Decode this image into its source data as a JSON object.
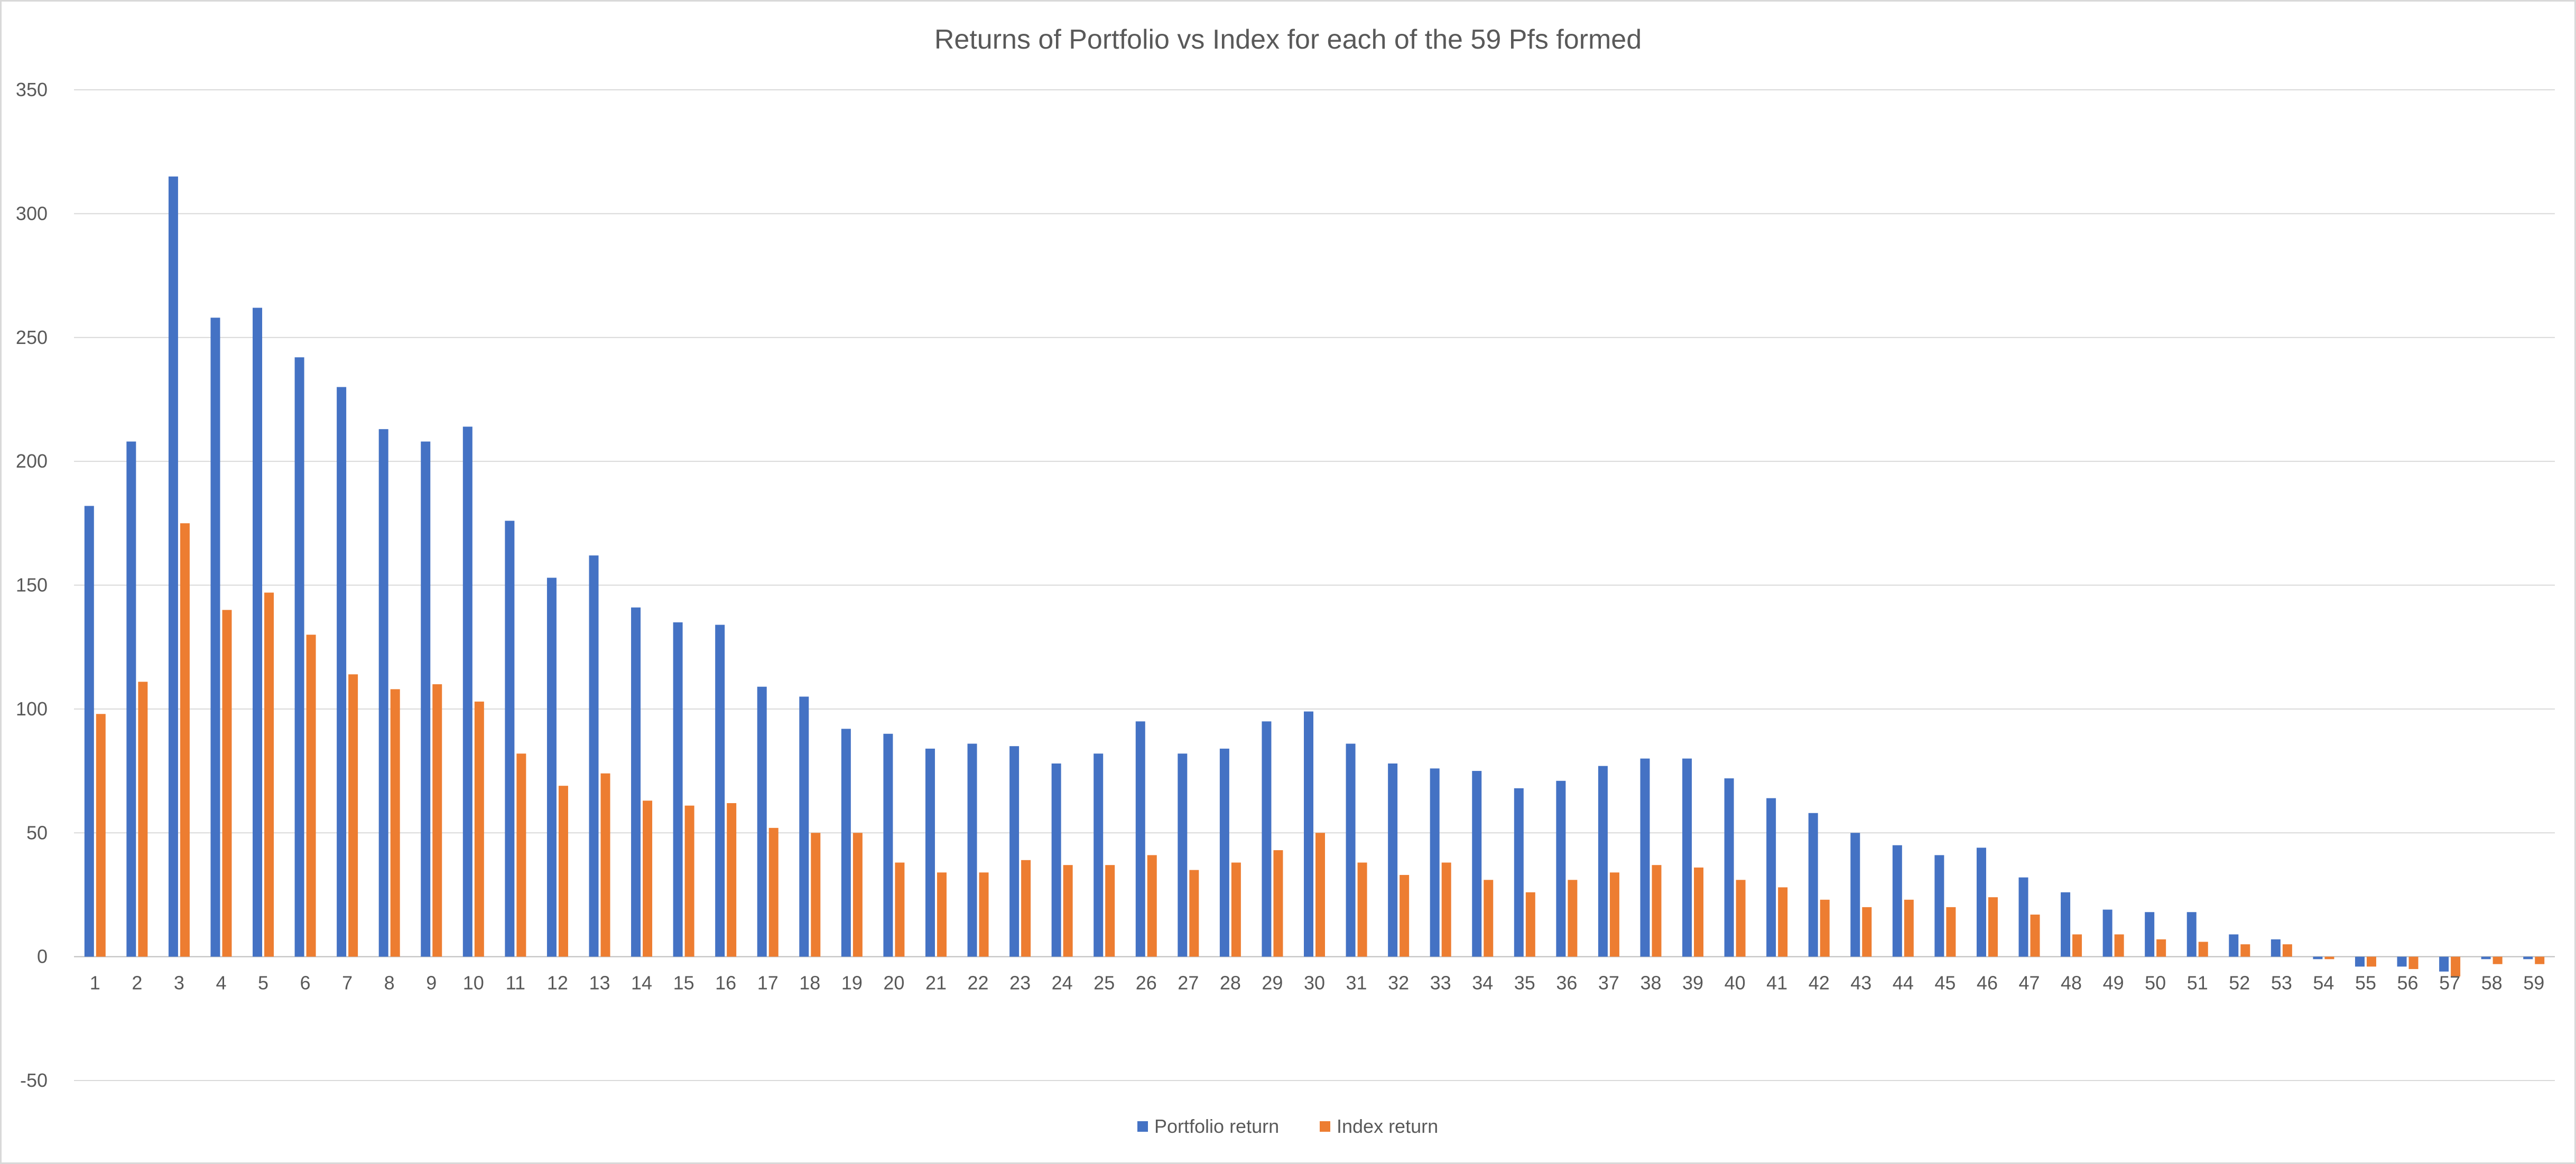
{
  "chart_data": {
    "type": "bar",
    "title": "Returns of Portfolio vs Index  for each of the 59 Pfs formed",
    "xlabel": "",
    "ylabel": "",
    "ylim": [
      -50,
      350
    ],
    "yticks": [
      -50,
      0,
      50,
      100,
      150,
      200,
      250,
      300,
      350
    ],
    "grid": true,
    "legend_position": "bottom",
    "categories": [
      "1",
      "2",
      "3",
      "4",
      "5",
      "6",
      "7",
      "8",
      "9",
      "10",
      "11",
      "12",
      "13",
      "14",
      "15",
      "16",
      "17",
      "18",
      "19",
      "20",
      "21",
      "22",
      "23",
      "24",
      "25",
      "26",
      "27",
      "28",
      "29",
      "30",
      "31",
      "32",
      "33",
      "34",
      "35",
      "36",
      "37",
      "38",
      "39",
      "40",
      "41",
      "42",
      "43",
      "44",
      "45",
      "46",
      "47",
      "48",
      "49",
      "50",
      "51",
      "52",
      "53",
      "54",
      "55",
      "56",
      "57",
      "58",
      "59"
    ],
    "series": [
      {
        "name": "Portfolio return",
        "color": "#4472C4",
        "values": [
          182,
          208,
          315,
          258,
          262,
          242,
          230,
          213,
          208,
          214,
          176,
          153,
          162,
          141,
          135,
          134,
          109,
          105,
          92,
          90,
          84,
          86,
          85,
          78,
          82,
          95,
          82,
          84,
          95,
          99,
          86,
          78,
          76,
          75,
          68,
          71,
          77,
          80,
          80,
          72,
          64,
          58,
          50,
          45,
          41,
          44,
          32,
          26,
          19,
          18,
          18,
          9,
          7,
          -1,
          -4,
          -4,
          -6,
          -1,
          -1
        ]
      },
      {
        "name": "Index return",
        "color": "#ED7D31",
        "values": [
          98,
          111,
          175,
          140,
          147,
          130,
          114,
          108,
          110,
          103,
          82,
          69,
          74,
          63,
          61,
          62,
          52,
          50,
          50,
          38,
          34,
          34,
          39,
          37,
          37,
          41,
          35,
          38,
          43,
          50,
          38,
          33,
          38,
          31,
          26,
          31,
          34,
          37,
          36,
          31,
          28,
          23,
          20,
          23,
          20,
          24,
          17,
          9,
          9,
          7,
          6,
          5,
          5,
          -1,
          -4,
          -5,
          -8,
          -3,
          -3
        ]
      }
    ]
  }
}
